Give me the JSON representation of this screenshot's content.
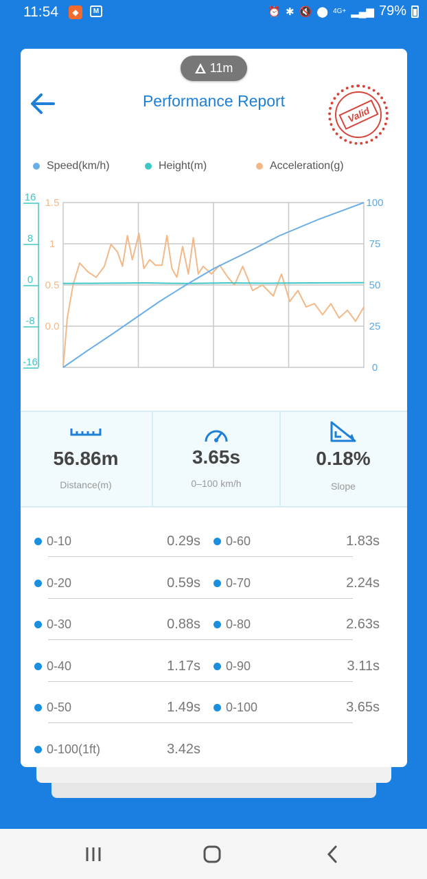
{
  "status_bar": {
    "time": "11:54",
    "battery": "79%",
    "network": "4G+",
    "icons": [
      "alarm-icon",
      "bluetooth-icon",
      "mute-icon",
      "location-icon",
      "signal-icon",
      "battery-icon"
    ]
  },
  "header": {
    "elevation_badge": "11m",
    "title": "Performance Report",
    "stamp_text": "Valid"
  },
  "chart_data": {
    "type": "line",
    "series": [
      {
        "name": "Speed(km/h)",
        "color": "#6aaee8",
        "axis": "right-speed"
      },
      {
        "name": "Height(m)",
        "color": "#3fc6c6",
        "axis": "left-height"
      },
      {
        "name": "Acceleration(g)",
        "color": "#f3b888",
        "axis": "left-acceleration"
      }
    ],
    "height_axis_ticks": [
      "16",
      "8",
      "0",
      "-8",
      "-16"
    ],
    "height_ylim": [
      -16,
      16
    ],
    "acceleration_axis_ticks": [
      "1.5",
      "1",
      "0.5",
      "0.0"
    ],
    "acceleration_ylim": [
      0,
      1.5
    ],
    "speed_axis_ticks": [
      "100",
      "75",
      "50",
      "25",
      "0"
    ],
    "speed_ylim": [
      0,
      100
    ],
    "x_range": [
      0,
      3.65
    ],
    "speed_points": [
      [
        0,
        0
      ],
      [
        0.29,
        10
      ],
      [
        0.59,
        20
      ],
      [
        0.88,
        30
      ],
      [
        1.17,
        40
      ],
      [
        1.49,
        50
      ],
      [
        1.83,
        60
      ],
      [
        2.24,
        70
      ],
      [
        2.63,
        80
      ],
      [
        3.11,
        90
      ],
      [
        3.65,
        100
      ]
    ],
    "height_points": [
      [
        0,
        0.3
      ],
      [
        0.5,
        0.35
      ],
      [
        1.0,
        0.4
      ],
      [
        1.5,
        0.3
      ],
      [
        2.0,
        0.4
      ],
      [
        2.5,
        0.35
      ],
      [
        3.0,
        0.4
      ],
      [
        3.65,
        0.45
      ]
    ],
    "acceleration_points": [
      [
        0,
        0.0
      ],
      [
        0.05,
        0.45
      ],
      [
        0.12,
        0.75
      ],
      [
        0.2,
        0.95
      ],
      [
        0.3,
        0.87
      ],
      [
        0.4,
        0.82
      ],
      [
        0.5,
        0.92
      ],
      [
        0.58,
        1.12
      ],
      [
        0.66,
        1.05
      ],
      [
        0.72,
        0.92
      ],
      [
        0.78,
        1.2
      ],
      [
        0.84,
        0.98
      ],
      [
        0.92,
        1.22
      ],
      [
        0.98,
        0.9
      ],
      [
        1.05,
        0.98
      ],
      [
        1.12,
        0.93
      ],
      [
        1.2,
        0.93
      ],
      [
        1.26,
        1.2
      ],
      [
        1.32,
        0.9
      ],
      [
        1.38,
        0.82
      ],
      [
        1.45,
        1.1
      ],
      [
        1.52,
        0.85
      ],
      [
        1.58,
        1.18
      ],
      [
        1.64,
        0.85
      ],
      [
        1.7,
        0.92
      ],
      [
        1.8,
        0.85
      ],
      [
        1.9,
        0.93
      ],
      [
        2.0,
        0.82
      ],
      [
        2.08,
        0.75
      ],
      [
        2.18,
        0.92
      ],
      [
        2.3,
        0.7
      ],
      [
        2.42,
        0.75
      ],
      [
        2.55,
        0.65
      ],
      [
        2.65,
        0.85
      ],
      [
        2.75,
        0.6
      ],
      [
        2.85,
        0.7
      ],
      [
        2.95,
        0.55
      ],
      [
        3.05,
        0.58
      ],
      [
        3.15,
        0.48
      ],
      [
        3.25,
        0.58
      ],
      [
        3.35,
        0.45
      ],
      [
        3.45,
        0.52
      ],
      [
        3.55,
        0.42
      ],
      [
        3.65,
        0.55
      ]
    ],
    "grid": true
  },
  "stats": {
    "distance_value": "56.86m",
    "distance_label": "Distance(m)",
    "time_value": "3.65s",
    "time_label": "0–100 km/h",
    "slope_value": "0.18%",
    "slope_label": "Slope"
  },
  "splits": [
    {
      "label": "0-10",
      "time": "0.29s"
    },
    {
      "label": "0-20",
      "time": "0.59s"
    },
    {
      "label": "0-30",
      "time": "0.88s"
    },
    {
      "label": "0-40",
      "time": "1.17s"
    },
    {
      "label": "0-50",
      "time": "1.49s"
    },
    {
      "label": "0-60",
      "time": "1.83s"
    },
    {
      "label": "0-70",
      "time": "2.24s"
    },
    {
      "label": "0-80",
      "time": "2.63s"
    },
    {
      "label": "0-90",
      "time": "3.11s"
    },
    {
      "label": "0-100",
      "time": "3.65s"
    },
    {
      "label": "0-100(1ft)",
      "time": "3.42s"
    }
  ],
  "colors": {
    "accent": "#1a7fe0",
    "title": "#1d7fd6",
    "stamp": "#d6453a",
    "split_dot": "#1a8fe0"
  }
}
